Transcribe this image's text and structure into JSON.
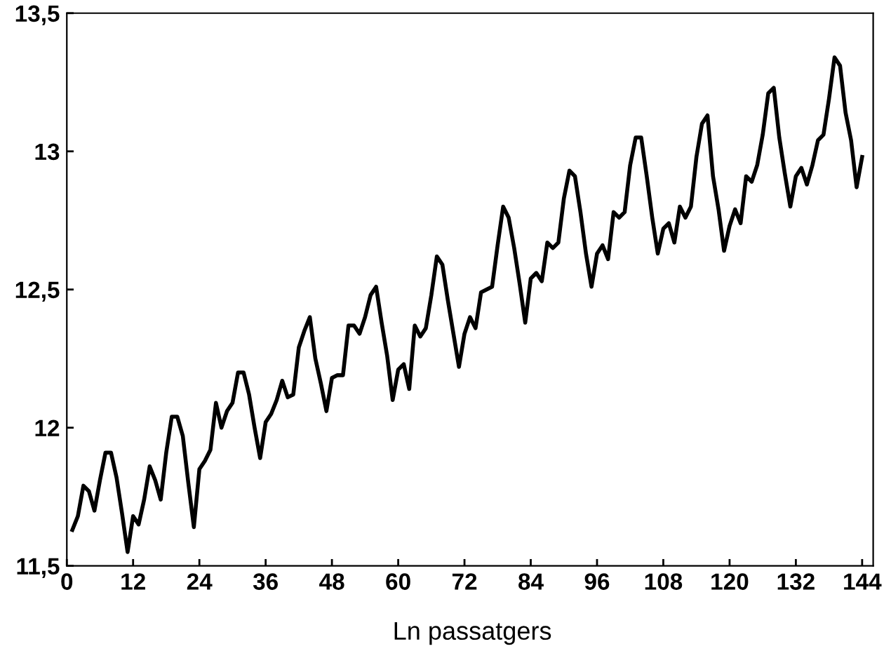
{
  "chart_data": {
    "type": "line",
    "xlabel": "Ln passatgers",
    "x": [
      1,
      2,
      3,
      4,
      5,
      6,
      7,
      8,
      9,
      10,
      11,
      12,
      13,
      14,
      15,
      16,
      17,
      18,
      19,
      20,
      21,
      22,
      23,
      24,
      25,
      26,
      27,
      28,
      29,
      30,
      31,
      32,
      33,
      34,
      35,
      36,
      37,
      38,
      39,
      40,
      41,
      42,
      43,
      44,
      45,
      46,
      47,
      48,
      49,
      50,
      51,
      52,
      53,
      54,
      55,
      56,
      57,
      58,
      59,
      60,
      61,
      62,
      63,
      64,
      65,
      66,
      67,
      68,
      69,
      70,
      71,
      72,
      73,
      74,
      75,
      76,
      77,
      78,
      79,
      80,
      81,
      82,
      83,
      84,
      85,
      86,
      87,
      88,
      89,
      90,
      91,
      92,
      93,
      94,
      95,
      96,
      97,
      98,
      99,
      100,
      101,
      102,
      103,
      104,
      105,
      106,
      107,
      108,
      109,
      110,
      111,
      112,
      113,
      114,
      115,
      116,
      117,
      118,
      119,
      120,
      121,
      122,
      123,
      124,
      125,
      126,
      127,
      128,
      129,
      130,
      131,
      132,
      133,
      134,
      135,
      136,
      137,
      138,
      139,
      140,
      141,
      142,
      143,
      144
    ],
    "series": [
      {
        "color": "#000000",
        "values": [
          11.63,
          11.68,
          11.79,
          11.77,
          11.7,
          11.81,
          11.91,
          11.91,
          11.82,
          11.69,
          11.55,
          11.68,
          11.65,
          11.74,
          11.86,
          11.81,
          11.74,
          11.91,
          12.04,
          12.04,
          11.97,
          11.8,
          11.64,
          11.85,
          11.88,
          11.92,
          12.09,
          12.0,
          12.06,
          12.09,
          12.2,
          12.2,
          12.12,
          12.0,
          11.89,
          12.02,
          12.05,
          12.1,
          12.17,
          12.11,
          12.12,
          12.29,
          12.35,
          12.4,
          12.25,
          12.16,
          12.06,
          12.18,
          12.19,
          12.19,
          12.37,
          12.37,
          12.34,
          12.4,
          12.48,
          12.51,
          12.38,
          12.26,
          12.1,
          12.21,
          12.23,
          12.14,
          12.37,
          12.33,
          12.36,
          12.48,
          12.62,
          12.59,
          12.46,
          12.34,
          12.22,
          12.34,
          12.4,
          12.36,
          12.49,
          12.5,
          12.51,
          12.66,
          12.8,
          12.76,
          12.65,
          12.52,
          12.38,
          12.54,
          12.56,
          12.53,
          12.67,
          12.65,
          12.67,
          12.83,
          12.93,
          12.91,
          12.78,
          12.63,
          12.51,
          12.63,
          12.66,
          12.61,
          12.78,
          12.76,
          12.78,
          12.95,
          13.05,
          13.05,
          12.91,
          12.76,
          12.63,
          12.72,
          12.74,
          12.67,
          12.8,
          12.76,
          12.8,
          12.98,
          13.1,
          13.13,
          12.91,
          12.79,
          12.64,
          12.73,
          12.79,
          12.74,
          12.91,
          12.89,
          12.95,
          13.06,
          13.21,
          13.23,
          13.05,
          12.92,
          12.8,
          12.91,
          12.94,
          12.88,
          12.95,
          13.04,
          13.06,
          13.19,
          13.34,
          13.31,
          13.14,
          13.04,
          12.87,
          12.98
        ]
      }
    ],
    "xlim": [
      0,
      146
    ],
    "xticks": [
      0,
      12,
      24,
      36,
      48,
      60,
      72,
      84,
      96,
      108,
      120,
      132,
      144
    ],
    "ylim": [
      11.5,
      13.5
    ],
    "yticks": [
      {
        "value": 11.5,
        "label": "11,5"
      },
      12,
      {
        "value": 12.5,
        "label": "12,5"
      },
      13,
      {
        "value": 13.5,
        "label": "13,5"
      }
    ],
    "marker": "none",
    "line_style": "solid"
  }
}
